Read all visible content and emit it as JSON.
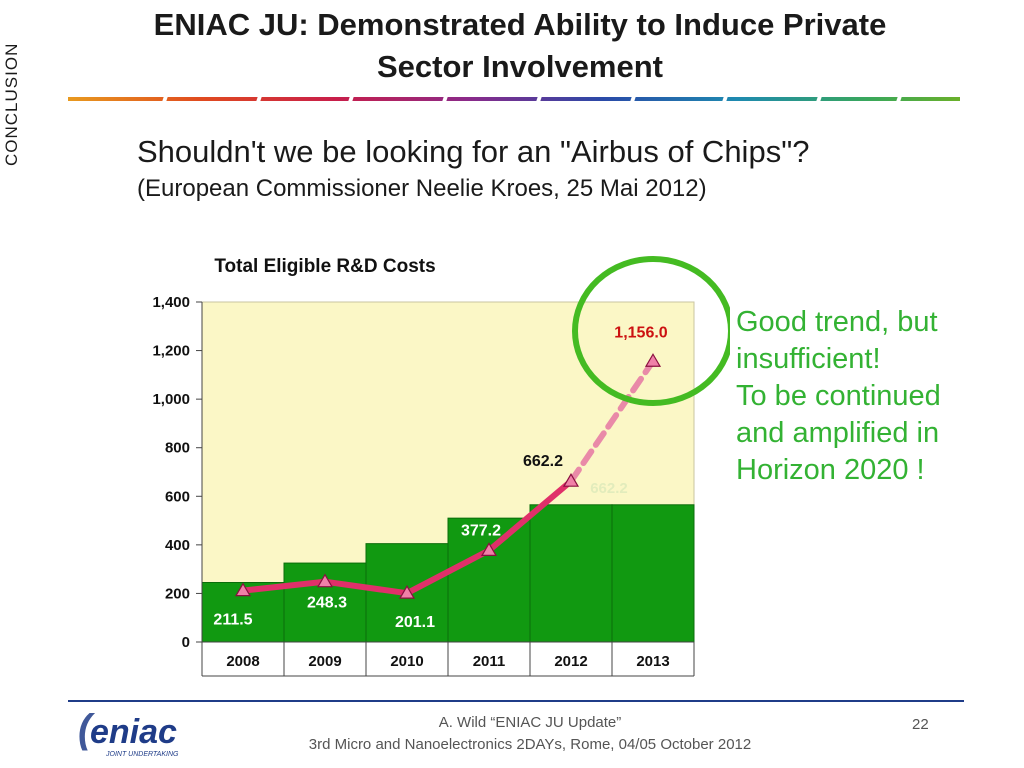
{
  "slide": {
    "side_label": "CONCLUSION",
    "title_line1": "ENIAC JU: Demonstrated Ability to Induce Private",
    "title_line2": "Sector Involvement",
    "quote": "Shouldn't we be looking for an \"Airbus of Chips\"?",
    "quote_source": "(European Commissioner Neelie Kroes, 25 Mai 2012)",
    "callout_lines": [
      "Good trend, but",
      "insufficient!",
      "To be continued",
      "and amplified in",
      "Horizon 2020 !"
    ],
    "footer_line1": "A. Wild “ENIAC JU Update”",
    "footer_line2": "3rd Micro and Nanoelectronics 2DAYs, Rome, 04/05 October 2012",
    "page_number": "22",
    "logo_text": "eniac",
    "logo_subtext": "JOINT UNDERTAKING"
  },
  "colors": {
    "title": "#1a1a1a",
    "callout": "#33b233",
    "plot_bg": "#fbf7c6",
    "bar": "#119911",
    "bar_edge": "#0a6d0a",
    "line": "#e0306a",
    "line_projected": "#e98aa8",
    "circle": "#44bb22",
    "highlight_label": "#cc1111",
    "footer_rule": "#1f3c88",
    "logo": "#1f3c88"
  },
  "chart_data": {
    "type": "bar",
    "title": "Total Eligible  R&D Costs",
    "categories": [
      "2008",
      "2009",
      "2010",
      "2011",
      "2012",
      "2013"
    ],
    "bars": [
      245,
      325,
      405,
      510,
      565,
      565
    ],
    "series": [
      {
        "values": [
          211.5,
          248.3,
          201.1,
          377.2,
          662.2,
          1156.0
        ]
      }
    ],
    "line_labels": [
      "211.5",
      "248.3",
      "201.1",
      "377.2",
      "662.2",
      "1,156.0"
    ],
    "bar_overlay_label": "662.2",
    "projected_segment": [
      "2012",
      "2013"
    ],
    "ylim": [
      0,
      1400
    ],
    "yticks": [
      0,
      200,
      400,
      600,
      800,
      1000,
      1200,
      1400
    ],
    "ytick_labels": [
      "0",
      "200",
      "400",
      "600",
      "800",
      "1,000",
      "1,200",
      "1,400"
    ],
    "grid": false,
    "legend": "none",
    "highlight": "2013"
  }
}
